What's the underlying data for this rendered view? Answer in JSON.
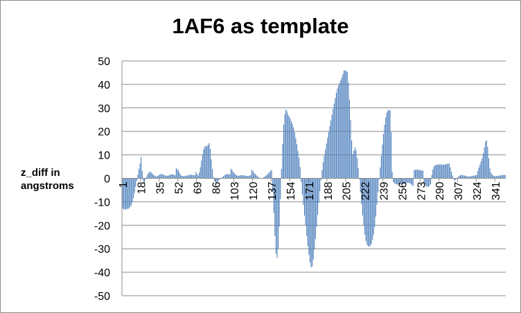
{
  "chart_data": {
    "type": "bar",
    "title": "1AF6 as template",
    "xlabel": "",
    "ylabel": "z_diff in angstroms",
    "ylim": [
      -50,
      50
    ],
    "ytick_step": 10,
    "grid": true,
    "legend": "none",
    "bar_color": "#4f81bd",
    "x_start": 1,
    "x_end": 350,
    "xtick_labels": [
      "1",
      "18",
      "35",
      "52",
      "69",
      "86",
      "103",
      "120",
      "137",
      "154",
      "171",
      "188",
      "205",
      "222",
      "239",
      "256",
      "273",
      "290",
      "307",
      "324",
      "341"
    ],
    "values": [
      -12.7,
      -13.3,
      -13.1,
      -13.4,
      -12.9,
      -13.1,
      -12.7,
      -12.3,
      -11.5,
      -10.2,
      -8.4,
      -6.2,
      -3.7,
      -1.1,
      1.6,
      4.1,
      6.3,
      9.2,
      3.2,
      -1.2,
      -2.1,
      -0.6,
      0.7,
      1.8,
      2.4,
      2.9,
      2.6,
      2.1,
      1.6,
      1.2,
      0.9,
      0.8,
      1.0,
      1.3,
      1.6,
      1.8,
      1.8,
      1.6,
      1.4,
      1.2,
      1.1,
      1.1,
      1.2,
      1.4,
      1.6,
      1.7,
      1.7,
      1.5,
      1.3,
      4.3,
      3.9,
      3.4,
      2.4,
      1.5,
      1.0,
      0.9,
      0.9,
      1.0,
      1.1,
      1.2,
      1.3,
      1.4,
      1.5,
      1.5,
      1.4,
      1.4,
      1.3,
      2.7,
      1.9,
      1.2,
      2.4,
      4.7,
      7.5,
      10.1,
      12.3,
      13.4,
      13.9,
      13.6,
      14.3,
      15.0,
      12.6,
      8.1,
      3.9,
      0.5,
      -1.2,
      -1.8,
      -1.6,
      -1.2,
      -0.8,
      -0.4,
      0.0,
      0.5,
      0.9,
      1.3,
      1.6,
      1.8,
      1.8,
      1.7,
      1.6,
      4.1,
      3.6,
      2.6,
      2.2,
      1.7,
      1.3,
      1.1,
      1.1,
      1.2,
      1.3,
      1.3,
      1.3,
      1.2,
      1.1,
      1.0,
      1.0,
      1.0,
      1.2,
      1.4,
      3.7,
      3.1,
      2.3,
      1.9,
      1.4,
      0.9,
      0.5,
      0.2,
      0.1,
      0.1,
      0.2,
      0.5,
      0.8,
      1.2,
      1.6,
      2.1,
      2.6,
      3.1,
      3.6,
      -5.6,
      -14.8,
      -24.5,
      -32.1,
      -33.9,
      -30.2,
      -20.6,
      -8.9,
      4.0,
      14.6,
      22.8,
      27.4,
      29.3,
      28.6,
      27.1,
      26.3,
      25.4,
      24.3,
      23.2,
      21.7,
      19.5,
      17.1,
      14.5,
      11.7,
      8.8,
      4.8,
      -1.6,
      -6.9,
      -11.4,
      -15.9,
      -20.2,
      -24.6,
      -28.8,
      -32.6,
      -35.8,
      -37.9,
      -37.5,
      -34.6,
      -30.4,
      -25.8,
      -20.6,
      -15.5,
      -10.4,
      -5.5,
      -0.8,
      3.5,
      6.9,
      9.6,
      12.2,
      14.8,
      17.3,
      19.8,
      22.3,
      24.7,
      27.1,
      29.5,
      31.9,
      34.2,
      36.5,
      38.3,
      39.6,
      40.7,
      41.8,
      43.0,
      44.4,
      45.9,
      45.9,
      45.8,
      45.3,
      40.8,
      33.5,
      24.9,
      16.1,
      10.3,
      11.8,
      13.3,
      11.9,
      8.7,
      4.5,
      -0.5,
      -5.9,
      -11.0,
      -15.8,
      -20.2,
      -24.0,
      -26.8,
      -28.3,
      -28.9,
      -29.1,
      -28.7,
      -27.9,
      -26.3,
      -23.9,
      -20.7,
      -16.3,
      -11.2,
      -5.9,
      -0.5,
      4.6,
      9.6,
      14.4,
      18.9,
      22.8,
      25.9,
      28.0,
      29.0,
      28.8,
      29.2,
      19.6,
      2.8,
      -1.6,
      -2.1,
      -2.4,
      -2.6,
      -2.7,
      -2.7,
      -2.6,
      -2.5,
      -2.4,
      -2.3,
      -2.2,
      -2.1,
      -2.0,
      -1.9,
      -1.9,
      -2.1,
      -2.4,
      -2.9,
      -3.2,
      3.5,
      3.6,
      3.7,
      3.7,
      3.6,
      3.5,
      3.4,
      3.4,
      3.2,
      -2.2,
      -2.8,
      -3.3,
      -3.7,
      -3.6,
      -3.1,
      -2.5,
      1.4,
      3.8,
      5.1,
      5.5,
      5.7,
      5.8,
      5.9,
      5.9,
      5.9,
      5.9,
      5.8,
      5.8,
      5.9,
      6.0,
      6.1,
      6.3,
      6.2,
      4.6,
      2.8,
      1.2,
      -0.4,
      -1.1,
      -0.6,
      0.0,
      0.6,
      1.0,
      1.3,
      1.4,
      1.4,
      1.3,
      1.2,
      1.0,
      0.9,
      0.8,
      0.8,
      0.8,
      0.9,
      1.0,
      1.1,
      1.2,
      1.3,
      1.4,
      3.1,
      4.6,
      5.9,
      7.2,
      8.6,
      10.6,
      13.1,
      15.6,
      16.2,
      13.4,
      8.5,
      4.3,
      2.4,
      1.6,
      1.2,
      1.0,
      0.9,
      0.9,
      1.0,
      1.1,
      1.2,
      1.3,
      1.4,
      1.4,
      1.4,
      1.4
    ]
  }
}
